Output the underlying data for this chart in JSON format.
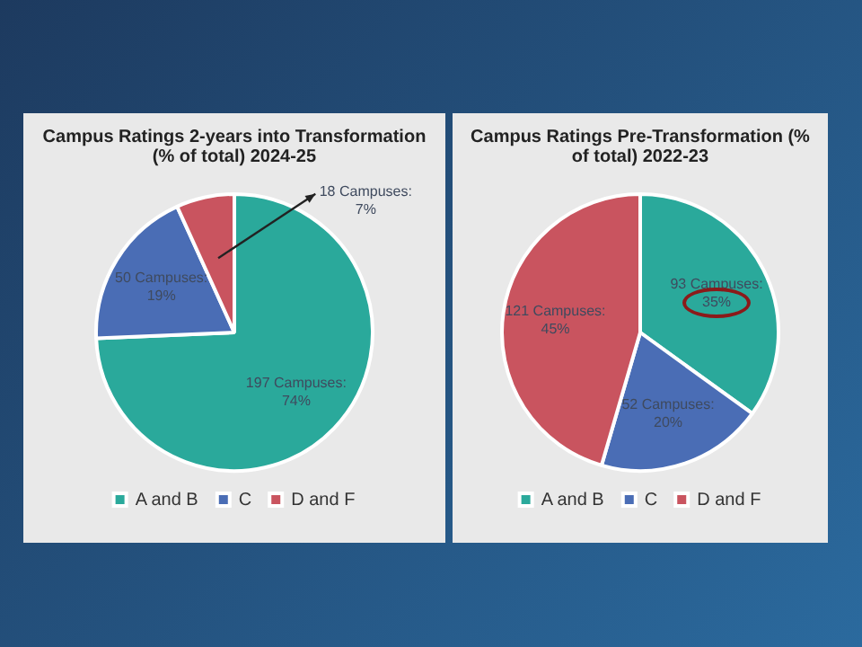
{
  "chart_data": [
    {
      "type": "pie",
      "title": "Campus Ratings 2-years into Transformation (% of total) 2024-25",
      "categories": [
        "A and B",
        "C",
        "D and F"
      ],
      "values": [
        197,
        50,
        18
      ],
      "colors": [
        "#2aa99b",
        "#4a6db5",
        "#c9545f"
      ],
      "value_labels": [
        "197 Campuses:\n74%",
        "50 Campuses:\n19%",
        "18 Campuses:\n7%"
      ],
      "legend": "bottom"
    },
    {
      "type": "pie",
      "title": "Campus Ratings Pre-Transformation (% of total) 2022-23",
      "categories": [
        "A and B",
        "C",
        "D and F"
      ],
      "values": [
        93,
        52,
        121
      ],
      "colors": [
        "#2aa99b",
        "#4a6db5",
        "#c9545f"
      ],
      "value_labels": [
        "93 Campuses:\n35%",
        "52 Campuses:\n20%",
        "121 Campuses:\n45%"
      ],
      "legend": "bottom"
    }
  ]
}
